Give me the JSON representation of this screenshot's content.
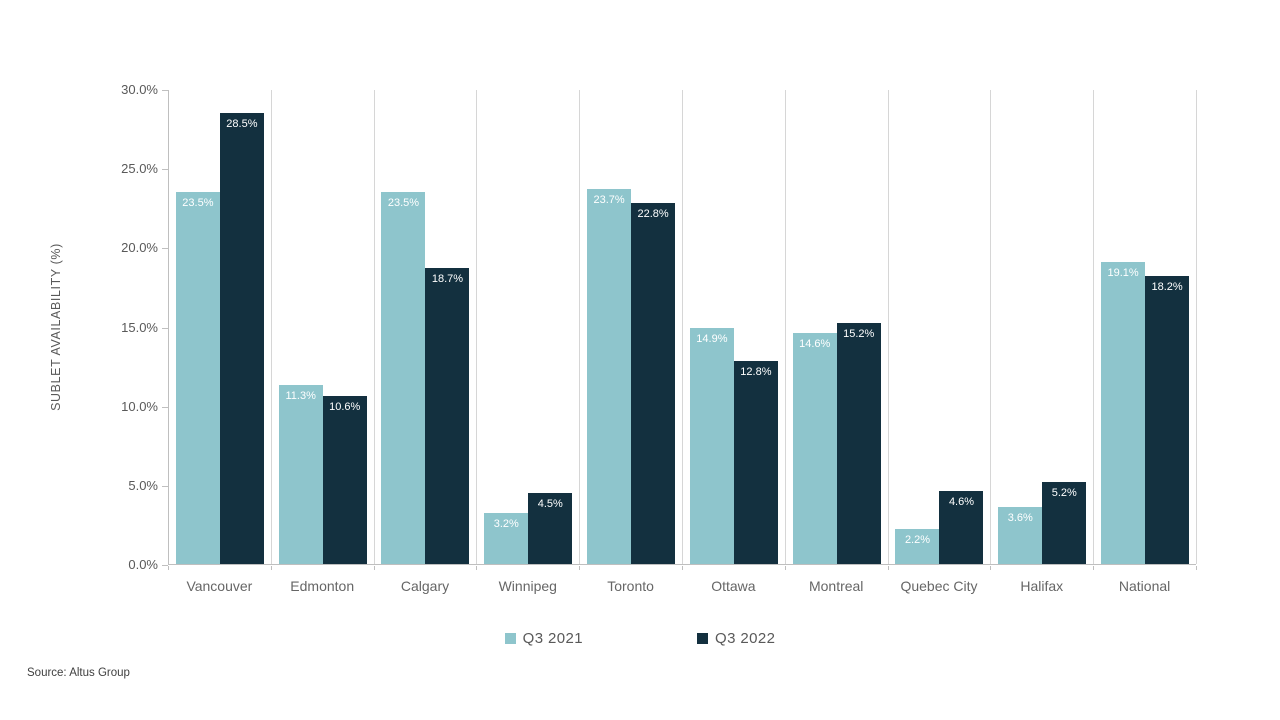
{
  "chart_data": {
    "type": "bar",
    "title": "",
    "xlabel": "",
    "ylabel": "SUBLET AVAILABILITY (%)",
    "categories": [
      "Vancouver",
      "Edmonton",
      "Calgary",
      "Winnipeg",
      "Toronto",
      "Ottawa",
      "Montreal",
      "Quebec City",
      "Halifax",
      "National"
    ],
    "series": [
      {
        "name": "Q3 2021",
        "color": "#8ec5cc",
        "values": [
          23.5,
          11.3,
          23.5,
          3.2,
          23.7,
          14.9,
          14.6,
          2.2,
          3.6,
          19.1
        ]
      },
      {
        "name": "Q3 2022",
        "color": "#13303f",
        "values": [
          28.5,
          10.6,
          18.7,
          4.5,
          22.8,
          12.8,
          15.2,
          4.6,
          5.2,
          18.2
        ]
      }
    ],
    "value_label_suffix": "%",
    "value_label_color": "#ffffff",
    "ylim": [
      0,
      30
    ],
    "yticks": [
      {
        "label": "0.0%",
        "value": 0
      },
      {
        "label": "5.0%",
        "value": 5
      },
      {
        "label": "10.0%",
        "value": 10
      },
      {
        "label": "15.0%",
        "value": 15
      },
      {
        "label": "20.0%",
        "value": 20
      },
      {
        "label": "25.0%",
        "value": 25
      },
      {
        "label": "30.0%",
        "value": 30
      }
    ],
    "grid": "vertical category separators only",
    "separator_color": "#d6d6d6",
    "axis_color": "#bfbfbf",
    "legend_position": "bottom-center"
  },
  "source": {
    "label": "Source: Altus Group"
  }
}
